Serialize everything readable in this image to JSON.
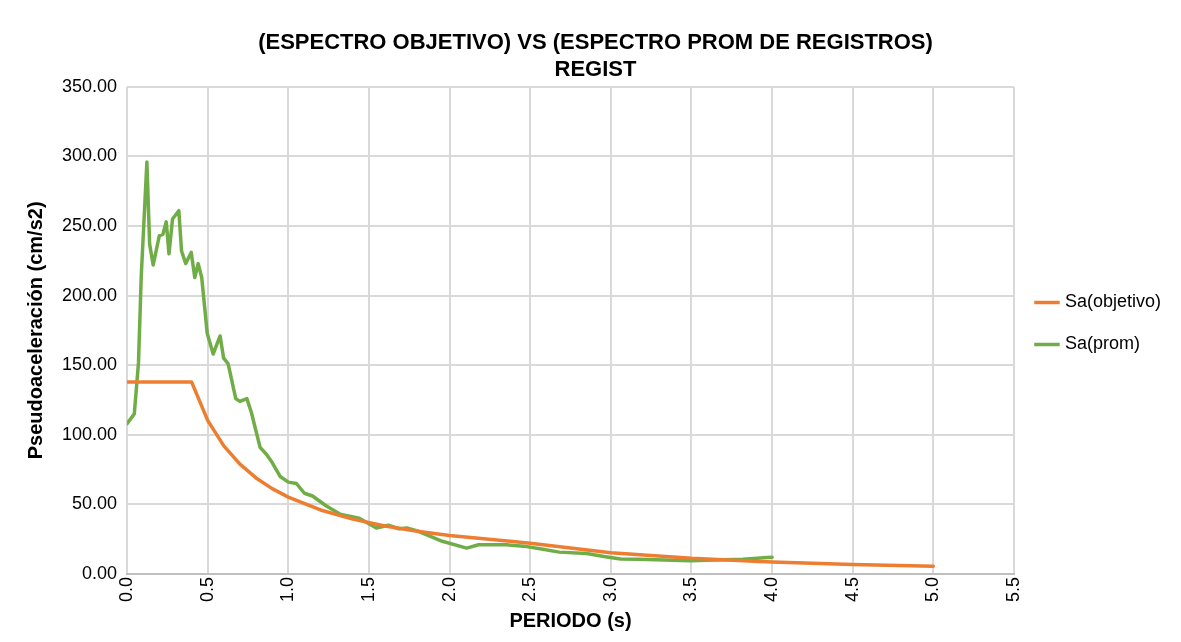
{
  "chart_data": {
    "type": "line",
    "title": "(ESPECTRO OBJETIVO) VS (ESPECTRO PROM DE REGISTROS)",
    "subtitle": "REGIST",
    "xlabel": "PERIODO (s)",
    "ylabel": "Pseudoaceleración (cm/s2)",
    "xlim": [
      0,
      5.5
    ],
    "xticks": [
      {
        "value": 0,
        "label": "0.0"
      },
      {
        "value": 0.5,
        "label": "0.5"
      },
      {
        "value": 1,
        "label": "1.0"
      },
      {
        "value": 1.5,
        "label": "1.5"
      },
      {
        "value": 2,
        "label": "2.0"
      },
      {
        "value": 2.5,
        "label": "2.5"
      },
      {
        "value": 3,
        "label": "3.0"
      },
      {
        "value": 3.5,
        "label": "3.5"
      },
      {
        "value": 4,
        "label": "4.0"
      },
      {
        "value": 4.5,
        "label": "4.5"
      },
      {
        "value": 5,
        "label": "5.0"
      },
      {
        "value": 5.5,
        "label": "5.5"
      }
    ],
    "ylim": [
      0,
      350
    ],
    "yticks": [
      {
        "value": 0,
        "label": "0.00"
      },
      {
        "value": 50,
        "label": "50.00"
      },
      {
        "value": 100,
        "label": "100.00"
      },
      {
        "value": 150,
        "label": "150.00"
      },
      {
        "value": 200,
        "label": "200.00"
      },
      {
        "value": 250,
        "label": "250.00"
      },
      {
        "value": 300,
        "label": "300.00"
      },
      {
        "value": 350,
        "label": "350.00"
      }
    ],
    "grid": true,
    "legend": "right",
    "marker": "none",
    "line_style": "solid",
    "series": [
      {
        "name": "Sa(objetivo)",
        "color": "#ed7d31",
        "x": [
          0,
          0.4,
          0.5,
          0.6,
          0.7,
          0.8,
          0.9,
          1.0,
          1.2,
          1.4,
          1.6,
          1.8,
          2.0,
          2.5,
          3.0,
          3.5,
          4.0,
          4.5,
          5.0
        ],
        "values": [
          138,
          138,
          110.4,
          92,
          78.9,
          69,
          61.3,
          55.2,
          46,
          39.4,
          34.5,
          30.7,
          27.6,
          22.1,
          15.3,
          11.3,
          8.6,
          6.8,
          5.5
        ]
      },
      {
        "name": "Sa(prom)",
        "color": "#70ad47",
        "x": [
          0,
          0.045,
          0.071,
          0.088,
          0.123,
          0.14,
          0.162,
          0.2,
          0.222,
          0.243,
          0.26,
          0.282,
          0.321,
          0.338,
          0.364,
          0.398,
          0.42,
          0.441,
          0.463,
          0.497,
          0.534,
          0.577,
          0.599,
          0.627,
          0.674,
          0.7,
          0.743,
          0.771,
          0.825,
          0.864,
          0.9,
          0.95,
          1.0,
          1.05,
          1.1,
          1.15,
          1.234,
          1.32,
          1.44,
          1.546,
          1.62,
          1.686,
          1.735,
          1.8,
          1.955,
          2.106,
          2.18,
          2.35,
          2.46,
          2.57,
          2.68,
          2.85,
          2.957,
          3.06,
          3.17,
          3.49,
          3.82,
          4.0
        ],
        "values": [
          108,
          115,
          152,
          214,
          296,
          237,
          222,
          243,
          244,
          253,
          230,
          255,
          261,
          232,
          223,
          231,
          213,
          223,
          213,
          173,
          158,
          171,
          155,
          151,
          126,
          124,
          126,
          116,
          91,
          86,
          80,
          70,
          66,
          65,
          58,
          56,
          49,
          43,
          40,
          33,
          35,
          32.5,
          33,
          31,
          23.5,
          18.6,
          21,
          21,
          20,
          18,
          15.7,
          14.7,
          12.6,
          10.8,
          10.6,
          9.5,
          10.6,
          12.1
        ]
      }
    ]
  }
}
